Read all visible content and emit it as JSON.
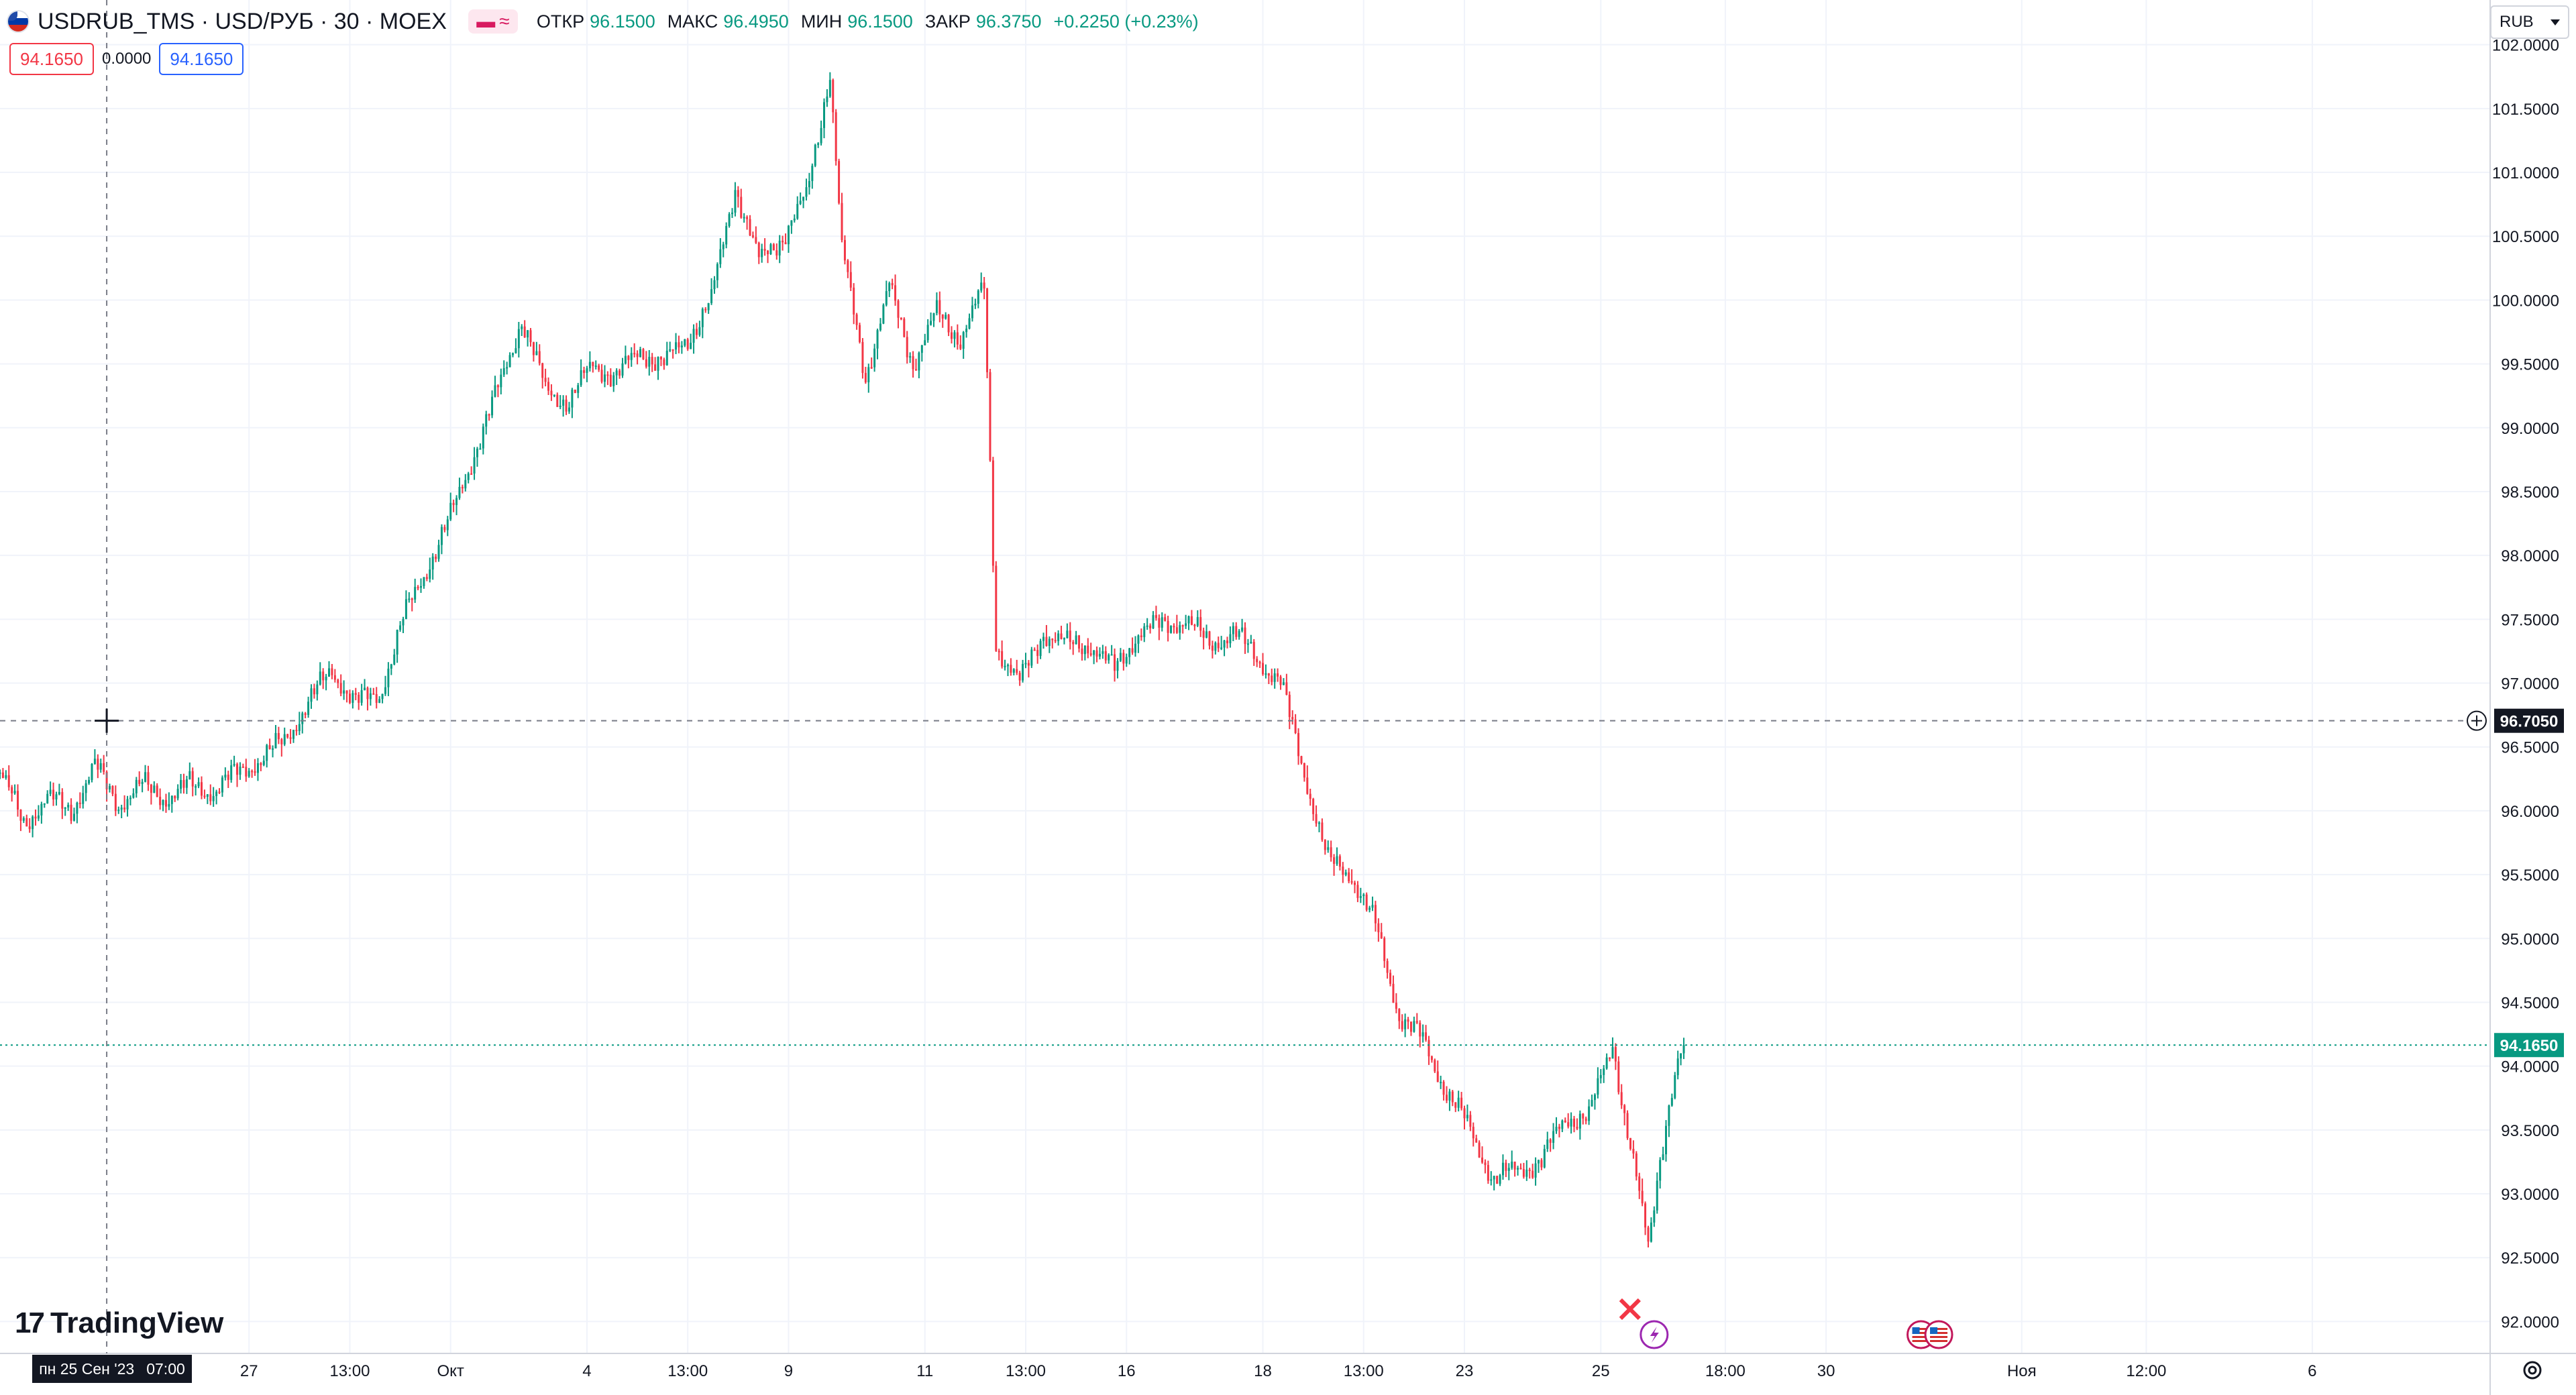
{
  "header": {
    "symbol": "USDRUB_TMS · USD/РУБ · 30 · MOEX",
    "chip": "≈",
    "ohlc": [
      {
        "label": "ОТКР",
        "value": "96.1500"
      },
      {
        "label": "МАКС",
        "value": "96.4950"
      },
      {
        "label": "МИН",
        "value": "96.1500"
      },
      {
        "label": "ЗАКР",
        "value": "96.3750"
      }
    ],
    "change": "+0.2250 (+0.23%)"
  },
  "trade": {
    "sell": "94.1650",
    "spread": "0.0000",
    "buy": "94.1650"
  },
  "currency": "RUB",
  "branding": "TradingView",
  "cursor": {
    "date_label": "пн 25 Сен '23",
    "time_label": "07:00",
    "price_label": "96.7050",
    "price": 96.705,
    "time_index": 18
  },
  "last_price": {
    "label": "94.1650",
    "value": 94.165
  },
  "colors": {
    "up": "#089981",
    "down": "#f23645",
    "grid": "#f0f3fa",
    "text": "#131722",
    "accent": "#2962ff"
  },
  "chart_data": {
    "type": "line",
    "title": "USDRUB_TMS · USD/РУБ · 30 · MOEX",
    "ylim": [
      91.75,
      102.35
    ],
    "xlim": [
      0,
      420
    ],
    "y_ticks": [
      "92.0000",
      "92.5000",
      "93.0000",
      "93.5000",
      "94.0000",
      "94.5000",
      "95.0000",
      "95.5000",
      "96.0000",
      "96.5000",
      "97.0000",
      "97.5000",
      "98.0000",
      "98.5000",
      "99.0000",
      "99.5000",
      "100.0000",
      "100.5000",
      "101.0000",
      "101.5000",
      "102.0000"
    ],
    "y_tick_values": [
      92,
      92.5,
      93,
      93.5,
      94,
      94.5,
      95,
      95.5,
      96,
      96.5,
      97,
      97.5,
      98,
      98.5,
      99,
      99.5,
      100,
      100.5,
      101,
      101.5,
      102
    ],
    "x_ticks": [
      {
        "label": "27",
        "x": 42
      },
      {
        "label": "13:00",
        "x": 59
      },
      {
        "label": "Окт",
        "x": 76
      },
      {
        "label": "4",
        "x": 99
      },
      {
        "label": "13:00",
        "x": 116
      },
      {
        "label": "9",
        "x": 133
      },
      {
        "label": "11",
        "x": 156
      },
      {
        "label": "13:00",
        "x": 173
      },
      {
        "label": "16",
        "x": 190
      },
      {
        "label": "18",
        "x": 213
      },
      {
        "label": "13:00",
        "x": 230
      },
      {
        "label": "23",
        "x": 247
      },
      {
        "label": "25",
        "x": 270
      },
      {
        "label": "18:00",
        "x": 291
      },
      {
        "label": "30",
        "x": 308
      },
      {
        "label": "Ноя",
        "x": 341
      },
      {
        "label": "12:00",
        "x": 362
      },
      {
        "label": "6",
        "x": 390
      }
    ],
    "series": [
      {
        "values": [
          {
            "x": 0,
            "y": 96.3
          },
          {
            "x": 4,
            "y": 95.9
          },
          {
            "x": 8,
            "y": 96.1
          },
          {
            "x": 12,
            "y": 96.0
          },
          {
            "x": 16,
            "y": 96.35
          },
          {
            "x": 20,
            "y": 96.05
          },
          {
            "x": 24,
            "y": 96.2
          },
          {
            "x": 28,
            "y": 96.1
          },
          {
            "x": 32,
            "y": 96.2
          },
          {
            "x": 36,
            "y": 96.15
          },
          {
            "x": 40,
            "y": 96.3
          },
          {
            "x": 44,
            "y": 96.4
          },
          {
            "x": 48,
            "y": 96.55
          },
          {
            "x": 52,
            "y": 96.85
          },
          {
            "x": 56,
            "y": 97.1
          },
          {
            "x": 60,
            "y": 96.85
          },
          {
            "x": 64,
            "y": 96.9
          },
          {
            "x": 68,
            "y": 97.5
          },
          {
            "x": 72,
            "y": 97.9
          },
          {
            "x": 76,
            "y": 98.3
          },
          {
            "x": 80,
            "y": 98.8
          },
          {
            "x": 84,
            "y": 99.3
          },
          {
            "x": 88,
            "y": 99.85
          },
          {
            "x": 92,
            "y": 99.3
          },
          {
            "x": 96,
            "y": 99.2
          },
          {
            "x": 100,
            "y": 99.5
          },
          {
            "x": 104,
            "y": 99.4
          },
          {
            "x": 108,
            "y": 99.6
          },
          {
            "x": 112,
            "y": 99.5
          },
          {
            "x": 116,
            "y": 99.7
          },
          {
            "x": 120,
            "y": 100.0
          },
          {
            "x": 124,
            "y": 100.9
          },
          {
            "x": 128,
            "y": 100.3
          },
          {
            "x": 132,
            "y": 100.5
          },
          {
            "x": 136,
            "y": 100.8
          },
          {
            "x": 140,
            "y": 101.8
          },
          {
            "x": 142,
            "y": 100.4
          },
          {
            "x": 146,
            "y": 99.4
          },
          {
            "x": 150,
            "y": 100.1
          },
          {
            "x": 154,
            "y": 99.5
          },
          {
            "x": 158,
            "y": 99.9
          },
          {
            "x": 162,
            "y": 99.7
          },
          {
            "x": 166,
            "y": 100.1
          },
          {
            "x": 168,
            "y": 97.3
          },
          {
            "x": 172,
            "y": 97.0
          },
          {
            "x": 176,
            "y": 97.4
          },
          {
            "x": 180,
            "y": 97.3
          },
          {
            "x": 184,
            "y": 97.3
          },
          {
            "x": 188,
            "y": 97.1
          },
          {
            "x": 192,
            "y": 97.4
          },
          {
            "x": 196,
            "y": 97.45
          },
          {
            "x": 200,
            "y": 97.5
          },
          {
            "x": 204,
            "y": 97.3
          },
          {
            "x": 208,
            "y": 97.4
          },
          {
            "x": 212,
            "y": 97.2
          },
          {
            "x": 216,
            "y": 97.0
          },
          {
            "x": 220,
            "y": 96.3
          },
          {
            "x": 224,
            "y": 95.6
          },
          {
            "x": 228,
            "y": 95.5
          },
          {
            "x": 232,
            "y": 95.1
          },
          {
            "x": 236,
            "y": 94.4
          },
          {
            "x": 240,
            "y": 94.2
          },
          {
            "x": 244,
            "y": 93.8
          },
          {
            "x": 248,
            "y": 93.5
          },
          {
            "x": 252,
            "y": 93.1
          },
          {
            "x": 256,
            "y": 93.2
          },
          {
            "x": 260,
            "y": 93.25
          },
          {
            "x": 264,
            "y": 93.6
          },
          {
            "x": 268,
            "y": 93.6
          },
          {
            "x": 272,
            "y": 94.2
          },
          {
            "x": 274,
            "y": 93.6
          },
          {
            "x": 276,
            "y": 93.1
          },
          {
            "x": 278,
            "y": 92.6
          },
          {
            "x": 280,
            "y": 93.3
          },
          {
            "x": 282,
            "y": 93.8
          },
          {
            "x": 284,
            "y": 94.165
          }
        ]
      }
    ],
    "events": [
      {
        "x": 279,
        "icon": "lightning-icon"
      },
      {
        "x": 324,
        "icon": "us-flag-icon"
      },
      {
        "x": 327,
        "icon": "us-flag-icon"
      }
    ]
  }
}
